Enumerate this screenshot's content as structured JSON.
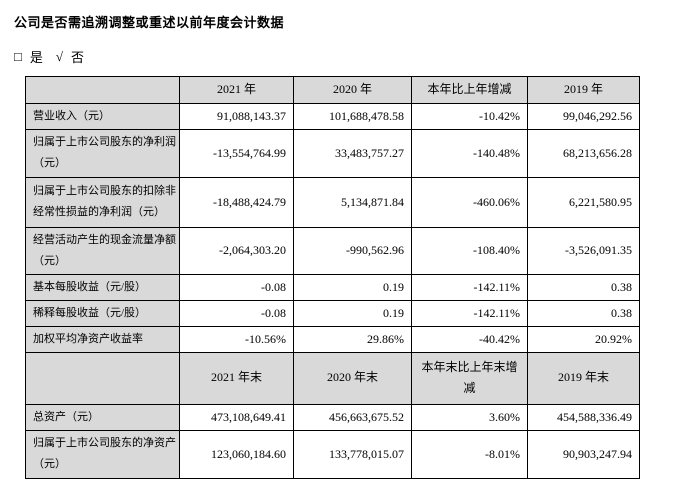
{
  "style": {
    "header_fill": "#d9d9d9",
    "border_color": "#000000",
    "text_color": "#000000"
  },
  "intro": {
    "question": "公司是否需追溯调整或重述以前年度会计数据",
    "options": [
      {
        "mark": "□",
        "label": "是"
      },
      {
        "mark": "√",
        "label": "否"
      }
    ]
  },
  "table": {
    "annual": {
      "headers": [
        "",
        "2021 年",
        "2020 年",
        "本年比上年增减",
        "2019 年"
      ],
      "rows": [
        {
          "label": "营业收入（元）",
          "y2021": "91,088,143.37",
          "y2020": "101,688,478.58",
          "change": "-10.42%",
          "y2019": "99,046,292.56"
        },
        {
          "label": "归属于上市公司股东的净利润（元）",
          "y2021": "-13,554,764.99",
          "y2020": "33,483,757.27",
          "change": "-140.48%",
          "y2019": "68,213,656.28"
        },
        {
          "label": "归属于上市公司股东的扣除非经常性损益的净利润（元）",
          "y2021": "-18,488,424.79",
          "y2020": "5,134,871.84",
          "change": "-460.06%",
          "y2019": "6,221,580.95"
        },
        {
          "label": "经营活动产生的现金流量净额（元）",
          "y2021": "-2,064,303.20",
          "y2020": "-990,562.96",
          "change": "-108.40%",
          "y2019": "-3,526,091.35"
        },
        {
          "label": "基本每股收益（元/股）",
          "y2021": "-0.08",
          "y2020": "0.19",
          "change": "-142.11%",
          "y2019": "0.38"
        },
        {
          "label": "稀释每股收益（元/股）",
          "y2021": "-0.08",
          "y2020": "0.19",
          "change": "-142.11%",
          "y2019": "0.38"
        },
        {
          "label": "加权平均净资产收益率",
          "y2021": "-10.56%",
          "y2020": "29.86%",
          "change": "-40.42%",
          "y2019": "20.92%"
        }
      ]
    },
    "year_end": {
      "headers": [
        "",
        "2021 年末",
        "2020 年末",
        "本年末比上年末增减",
        "2019 年末"
      ],
      "rows": [
        {
          "label": "总资产（元）",
          "y2021": "473,108,649.41",
          "y2020": "456,663,675.52",
          "change": "3.60%",
          "y2019": "454,588,336.49"
        },
        {
          "label": "归属于上市公司股东的净资产（元）",
          "y2021": "123,060,184.60",
          "y2020": "133,778,015.07",
          "change": "-8.01%",
          "y2019": "90,903,247.94"
        }
      ]
    }
  }
}
